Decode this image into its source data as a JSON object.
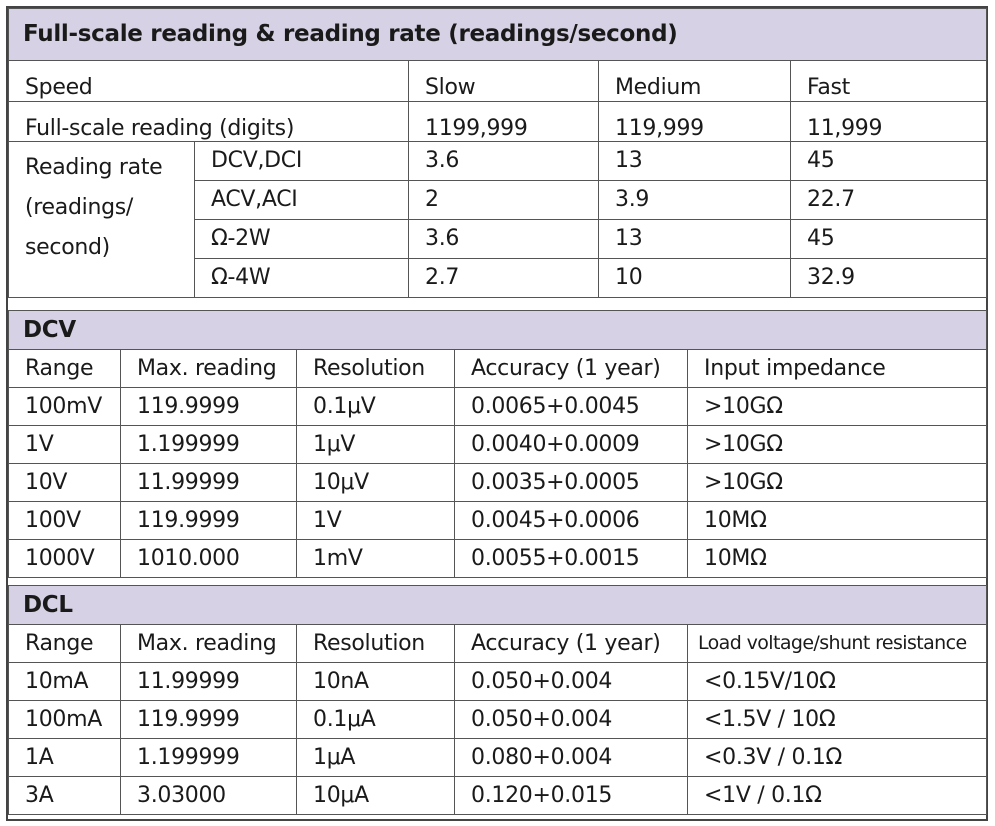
{
  "rate_table": {
    "title": "Full-scale reading & reading rate (readings/second)",
    "speed_label": "Speed",
    "speeds": [
      "Slow",
      "Medium",
      "Fast"
    ],
    "fullscale_label": "Full-scale reading (digits)",
    "fullscale_values": [
      "1199,999",
      "119,999",
      "11,999"
    ],
    "rate_label": "Reading rate (readings/ second)",
    "rows": [
      {
        "func": "DCV,DCI",
        "slow": "3.6",
        "medium": "13",
        "fast": "45"
      },
      {
        "func": "ACV,ACI",
        "slow": "2",
        "medium": "3.9",
        "fast": "22.7"
      },
      {
        "func": "Ω-2W",
        "slow": "3.6",
        "medium": "13",
        "fast": "45"
      },
      {
        "func": "Ω-4W",
        "slow": "2.7",
        "medium": "10",
        "fast": "32.9"
      }
    ]
  },
  "dcv_table": {
    "title": "DCV",
    "headers": [
      "Range",
      "Max. reading",
      "Resolution",
      "Accuracy (1 year)",
      "Input impedance"
    ],
    "rows": [
      [
        "100mV",
        "119.9999",
        "0.1μV",
        "0.0065+0.0045",
        ">10GΩ"
      ],
      [
        "1V",
        "1.199999",
        "1μV",
        "0.0040+0.0009",
        ">10GΩ"
      ],
      [
        "10V",
        "11.99999",
        "10μV",
        "0.0035+0.0005",
        ">10GΩ"
      ],
      [
        "100V",
        "119.9999",
        "1V",
        "0.0045+0.0006",
        "10MΩ"
      ],
      [
        "1000V",
        "1010.000",
        "1mV",
        "0.0055+0.0015",
        "10MΩ"
      ]
    ]
  },
  "dcl_table": {
    "title": "DCL",
    "headers": [
      "Range",
      "Max. reading",
      "Resolution",
      "Accuracy (1 year)",
      "Load voltage/shunt resistance"
    ],
    "rows": [
      [
        "10mA",
        "11.99999",
        "10nA",
        "0.050+0.004",
        "<0.15V/10Ω"
      ],
      [
        "100mA",
        "119.9999",
        "0.1μA",
        "0.050+0.004",
        "<1.5V / 10Ω"
      ],
      [
        "1A",
        "1.199999",
        "1μA",
        "0.080+0.004",
        "<0.3V / 0.1Ω"
      ],
      [
        "3A",
        "3.03000",
        "10μA",
        "0.120+0.015",
        "<1V / 0.1Ω"
      ]
    ]
  },
  "colors": {
    "header_bg": "#d6d1e4",
    "border": "#555555"
  }
}
